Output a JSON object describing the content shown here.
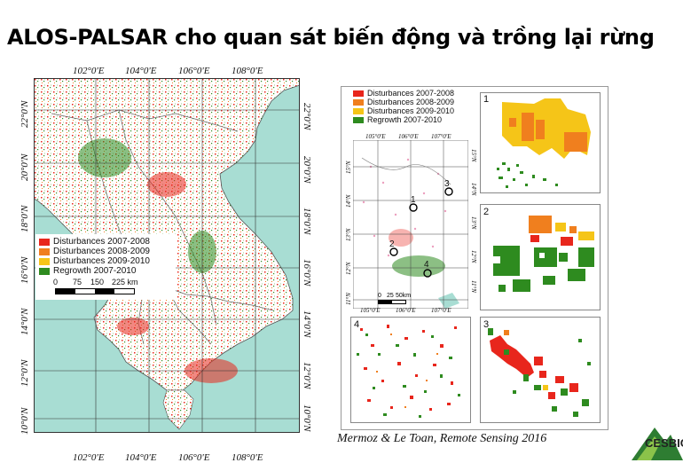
{
  "title": "ALOS-PALSAR cho quan sát biến động và trồng lại rừng",
  "main_map": {
    "lon_labels": [
      "102°0'E",
      "104°0'E",
      "106°0'E",
      "108°0'E"
    ],
    "lat_labels": [
      "22°0'N",
      "20°0'N",
      "18°0'N",
      "16°0'N",
      "14°0'N",
      "12°0'N",
      "10°0'N"
    ],
    "legend": [
      {
        "label": "Disturbances 2007-2008",
        "color": "#e8261c"
      },
      {
        "label": "Disturbances 2008-2009",
        "color": "#f07f1e"
      },
      {
        "label": "Disturbances 2009-2010",
        "color": "#f5c518"
      },
      {
        "label": "Regrowth 2007-2010",
        "color": "#2e8b1f"
      }
    ],
    "scale": [
      "0",
      "75",
      "150",
      "225 km"
    ]
  },
  "detail_figure": {
    "legend": [
      {
        "label": "Disturbances 2007-2008",
        "color": "#e8261c"
      },
      {
        "label": "Disturbances 2008-2009",
        "color": "#f07f1e"
      },
      {
        "label": "Disturbances 2009-2010",
        "color": "#f5c518"
      },
      {
        "label": "Regrowth 2007-2010",
        "color": "#2e8b1f"
      }
    ],
    "lon_labels": [
      "105°0'E",
      "106°0'E",
      "107°0'E"
    ],
    "lat_labels": [
      "15°N",
      "14°N",
      "13°N",
      "12°N",
      "11°N"
    ],
    "site_labels": [
      "1",
      "2",
      "3",
      "4"
    ],
    "scale": [
      "0",
      "25",
      "50km"
    ],
    "panel_numbers": [
      "1",
      "2",
      "3",
      "4"
    ]
  },
  "citation": "Mermoz & Le Toan, Remote Sensing 2016",
  "logo_text": "CESBIO",
  "colors": {
    "sea": "#a8ddd3",
    "land": "#ffffff",
    "border": "#777777"
  }
}
